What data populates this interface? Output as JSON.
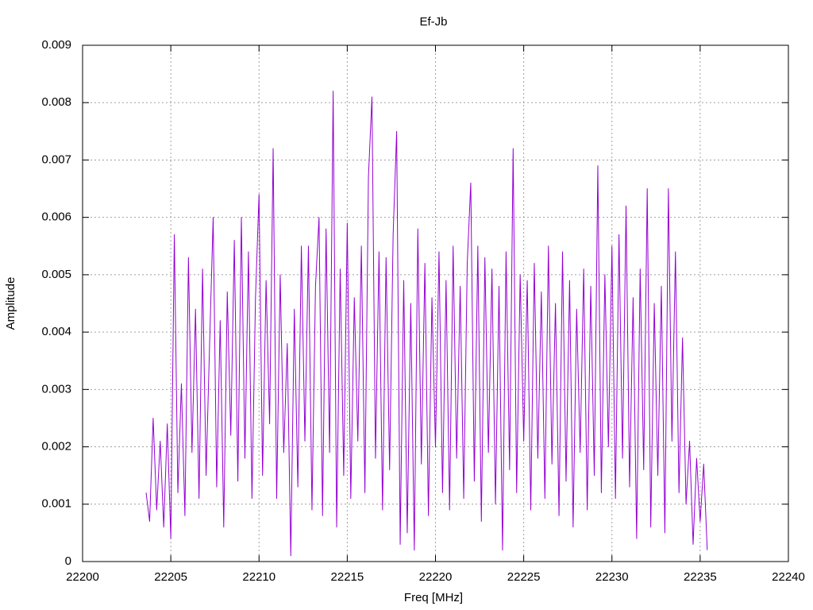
{
  "chart_data": {
    "type": "line",
    "title": "Ef-Jb",
    "x_label": "Freq [MHz]",
    "y_label": "Amplitude",
    "color": "#9400d3",
    "grid": true,
    "xlim": [
      22200,
      22240
    ],
    "xticks": [
      22200,
      22205,
      22210,
      22215,
      22220,
      22225,
      22230,
      22235,
      22240
    ],
    "ylim": [
      0,
      0.009
    ],
    "yticks": [
      0,
      0.001,
      0.002,
      0.003,
      0.004,
      0.005,
      0.006,
      0.007,
      0.008,
      0.009
    ],
    "x": [
      22203.6,
      22203.8,
      22204.0,
      22204.2,
      22204.4,
      22204.6,
      22204.8,
      22205.0,
      22205.2,
      22205.4,
      22205.6,
      22205.8,
      22206.0,
      22206.2,
      22206.4,
      22206.6,
      22206.8,
      22207.0,
      22207.2,
      22207.4,
      22207.6,
      22207.8,
      22208.0,
      22208.2,
      22208.4,
      22208.6,
      22208.8,
      22209.0,
      22209.2,
      22209.4,
      22209.6,
      22209.8,
      22210.0,
      22210.2,
      22210.4,
      22210.6,
      22210.8,
      22211.0,
      22211.2,
      22211.4,
      22211.6,
      22211.8,
      22212.0,
      22212.2,
      22212.4,
      22212.6,
      22212.8,
      22213.0,
      22213.2,
      22213.4,
      22213.6,
      22213.8,
      22214.0,
      22214.2,
      22214.4,
      22214.6,
      22214.8,
      22215.0,
      22215.2,
      22215.4,
      22215.6,
      22215.8,
      22216.0,
      22216.2,
      22216.4,
      22216.6,
      22216.8,
      22217.0,
      22217.2,
      22217.4,
      22217.6,
      22217.8,
      22218.0,
      22218.2,
      22218.4,
      22218.6,
      22218.8,
      22219.0,
      22219.2,
      22219.4,
      22219.6,
      22219.8,
      22220.0,
      22220.2,
      22220.4,
      22220.6,
      22220.8,
      22221.0,
      22221.2,
      22221.4,
      22221.6,
      22221.8,
      22222.0,
      22222.2,
      22222.4,
      22222.6,
      22222.8,
      22223.0,
      22223.2,
      22223.4,
      22223.6,
      22223.8,
      22224.0,
      22224.2,
      22224.4,
      22224.6,
      22224.8,
      22225.0,
      22225.2,
      22225.4,
      22225.6,
      22225.8,
      22226.0,
      22226.2,
      22226.4,
      22226.6,
      22226.8,
      22227.0,
      22227.2,
      22227.4,
      22227.6,
      22227.8,
      22228.0,
      22228.2,
      22228.4,
      22228.6,
      22228.8,
      22229.0,
      22229.2,
      22229.4,
      22229.6,
      22229.8,
      22230.0,
      22230.2,
      22230.4,
      22230.6,
      22230.8,
      22231.0,
      22231.2,
      22231.4,
      22231.6,
      22231.8,
      22232.0,
      22232.2,
      22232.4,
      22232.6,
      22232.8,
      22233.0,
      22233.2,
      22233.4,
      22233.6,
      22233.8,
      22234.0,
      22234.2,
      22234.4,
      22234.6,
      22234.8,
      22235.0,
      22235.2,
      22235.4
    ],
    "values": [
      0.0012,
      0.0007,
      0.0025,
      0.0009,
      0.0021,
      0.0006,
      0.0024,
      0.0004,
      0.0057,
      0.0012,
      0.0031,
      0.0008,
      0.0053,
      0.0019,
      0.0044,
      0.0011,
      0.0051,
      0.0015,
      0.0038,
      0.006,
      0.0013,
      0.0042,
      0.0006,
      0.0047,
      0.0022,
      0.0056,
      0.0014,
      0.006,
      0.0018,
      0.0054,
      0.0011,
      0.0046,
      0.0064,
      0.0015,
      0.0049,
      0.0024,
      0.0072,
      0.0011,
      0.005,
      0.0019,
      0.0038,
      0.0001,
      0.0044,
      0.0013,
      0.0055,
      0.0021,
      0.0055,
      0.0009,
      0.0048,
      0.006,
      0.0008,
      0.0058,
      0.0019,
      0.0082,
      0.0006,
      0.0051,
      0.0015,
      0.0059,
      0.0011,
      0.0046,
      0.0021,
      0.0055,
      0.0012,
      0.0067,
      0.0081,
      0.0018,
      0.0054,
      0.0009,
      0.0053,
      0.0016,
      0.0057,
      0.0075,
      0.0003,
      0.0049,
      0.0005,
      0.0045,
      0.0002,
      0.0058,
      0.0017,
      0.0052,
      0.0008,
      0.0046,
      0.002,
      0.0054,
      0.0012,
      0.0049,
      0.0009,
      0.0055,
      0.0018,
      0.0048,
      0.0011,
      0.0052,
      0.0066,
      0.0014,
      0.0055,
      0.0007,
      0.0053,
      0.0019,
      0.0051,
      0.001,
      0.0048,
      0.0002,
      0.0054,
      0.0016,
      0.0072,
      0.0012,
      0.005,
      0.0021,
      0.0049,
      0.0009,
      0.0052,
      0.0018,
      0.0047,
      0.0011,
      0.0055,
      0.0017,
      0.0045,
      0.0008,
      0.0054,
      0.0014,
      0.0049,
      0.0006,
      0.0044,
      0.0019,
      0.0051,
      0.0009,
      0.0048,
      0.0015,
      0.0069,
      0.0012,
      0.005,
      0.002,
      0.0055,
      0.0011,
      0.0057,
      0.0018,
      0.0062,
      0.0013,
      0.0046,
      0.0004,
      0.0051,
      0.0016,
      0.0065,
      0.0006,
      0.0045,
      0.0015,
      0.0048,
      0.0005,
      0.0065,
      0.0021,
      0.0054,
      0.0012,
      0.0039,
      0.001,
      0.0021,
      0.0003,
      0.0018,
      0.0007,
      0.0017,
      0.0002
    ]
  }
}
